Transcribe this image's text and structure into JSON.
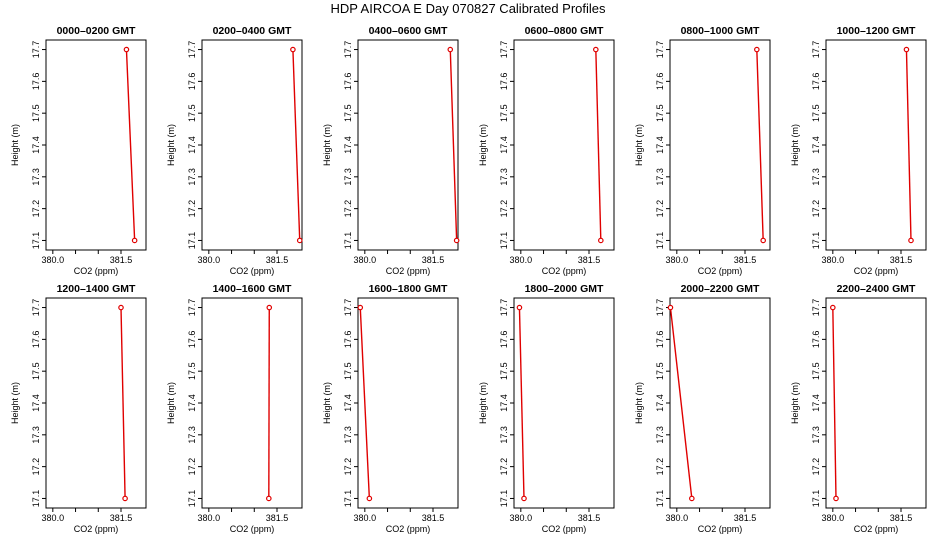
{
  "figure": {
    "title": "HDP  AIRCOA E  Day 070827  Calibrated Profiles"
  },
  "colors": {
    "series": "#e00000",
    "frame": "#000000"
  },
  "chart_data": [
    {
      "type": "line",
      "title": "0000–0200 GMT",
      "xlabel": "CO2 (ppm)",
      "ylabel": "Height (m)",
      "xlim": [
        379.85,
        382.05
      ],
      "ylim": [
        17.07,
        17.73
      ],
      "xticks": [
        "380.0",
        "381.5"
      ],
      "xtick_values": [
        380.0,
        380.5,
        381.0,
        381.5
      ],
      "yticks": [
        "17.1",
        "17.2",
        "17.3",
        "17.4",
        "17.5",
        "17.6",
        "17.7"
      ],
      "ytick_values": [
        17.1,
        17.2,
        17.3,
        17.4,
        17.5,
        17.6,
        17.7
      ],
      "points": [
        {
          "x": 381.62,
          "y": 17.7
        },
        {
          "x": 381.8,
          "y": 17.1
        }
      ]
    },
    {
      "type": "line",
      "title": "0200–0400 GMT",
      "xlabel": "CO2 (ppm)",
      "ylabel": "Height (m)",
      "xlim": [
        379.85,
        382.05
      ],
      "ylim": [
        17.07,
        17.73
      ],
      "xticks": [
        "380.0",
        "381.5"
      ],
      "xtick_values": [
        380.0,
        380.5,
        381.0,
        381.5
      ],
      "yticks": [
        "17.1",
        "17.2",
        "17.3",
        "17.4",
        "17.5",
        "17.6",
        "17.7"
      ],
      "ytick_values": [
        17.1,
        17.2,
        17.3,
        17.4,
        17.5,
        17.6,
        17.7
      ],
      "points": [
        {
          "x": 381.85,
          "y": 17.7
        },
        {
          "x": 382.0,
          "y": 17.1
        }
      ]
    },
    {
      "type": "line",
      "title": "0400–0600 GMT",
      "xlabel": "CO2 (ppm)",
      "ylabel": "Height (m)",
      "xlim": [
        379.85,
        382.05
      ],
      "ylim": [
        17.07,
        17.73
      ],
      "xticks": [
        "380.0",
        "381.5"
      ],
      "xtick_values": [
        380.0,
        380.5,
        381.0,
        381.5
      ],
      "yticks": [
        "17.1",
        "17.2",
        "17.3",
        "17.4",
        "17.5",
        "17.6",
        "17.7"
      ],
      "ytick_values": [
        17.1,
        17.2,
        17.3,
        17.4,
        17.5,
        17.6,
        17.7
      ],
      "points": [
        {
          "x": 381.88,
          "y": 17.7
        },
        {
          "x": 382.02,
          "y": 17.1
        }
      ]
    },
    {
      "type": "line",
      "title": "0600–0800 GMT",
      "xlabel": "CO2 (ppm)",
      "ylabel": "Height (m)",
      "xlim": [
        379.85,
        382.05
      ],
      "ylim": [
        17.07,
        17.73
      ],
      "xticks": [
        "380.0",
        "381.5"
      ],
      "xtick_values": [
        380.0,
        380.5,
        381.0,
        381.5
      ],
      "yticks": [
        "17.1",
        "17.2",
        "17.3",
        "17.4",
        "17.5",
        "17.6",
        "17.7"
      ],
      "ytick_values": [
        17.1,
        17.2,
        17.3,
        17.4,
        17.5,
        17.6,
        17.7
      ],
      "points": [
        {
          "x": 381.65,
          "y": 17.7
        },
        {
          "x": 381.76,
          "y": 17.1
        }
      ]
    },
    {
      "type": "line",
      "title": "0800–1000 GMT",
      "xlabel": "CO2 (ppm)",
      "ylabel": "Height (m)",
      "xlim": [
        379.85,
        382.05
      ],
      "ylim": [
        17.07,
        17.73
      ],
      "xticks": [
        "380.0",
        "381.5"
      ],
      "xtick_values": [
        380.0,
        380.5,
        381.0,
        381.5
      ],
      "yticks": [
        "17.1",
        "17.2",
        "17.3",
        "17.4",
        "17.5",
        "17.6",
        "17.7"
      ],
      "ytick_values": [
        17.1,
        17.2,
        17.3,
        17.4,
        17.5,
        17.6,
        17.7
      ],
      "points": [
        {
          "x": 381.76,
          "y": 17.7
        },
        {
          "x": 381.9,
          "y": 17.1
        }
      ]
    },
    {
      "type": "line",
      "title": "1000–1200 GMT",
      "xlabel": "CO2 (ppm)",
      "ylabel": "Height (m)",
      "xlim": [
        379.85,
        382.05
      ],
      "ylim": [
        17.07,
        17.73
      ],
      "xticks": [
        "380.0",
        "381.5"
      ],
      "xtick_values": [
        380.0,
        380.5,
        381.0,
        381.5
      ],
      "yticks": [
        "17.1",
        "17.2",
        "17.3",
        "17.4",
        "17.5",
        "17.6",
        "17.7"
      ],
      "ytick_values": [
        17.1,
        17.2,
        17.3,
        17.4,
        17.5,
        17.6,
        17.7
      ],
      "points": [
        {
          "x": 381.62,
          "y": 17.7
        },
        {
          "x": 381.72,
          "y": 17.1
        }
      ]
    },
    {
      "type": "line",
      "title": "1200–1400 GMT",
      "xlabel": "CO2 (ppm)",
      "ylabel": "Height (m)",
      "xlim": [
        379.85,
        382.05
      ],
      "ylim": [
        17.07,
        17.73
      ],
      "xticks": [
        "380.0",
        "381.5"
      ],
      "xtick_values": [
        380.0,
        380.5,
        381.0,
        381.5
      ],
      "yticks": [
        "17.1",
        "17.2",
        "17.3",
        "17.4",
        "17.5",
        "17.6",
        "17.7"
      ],
      "ytick_values": [
        17.1,
        17.2,
        17.3,
        17.4,
        17.5,
        17.6,
        17.7
      ],
      "points": [
        {
          "x": 381.5,
          "y": 17.7
        },
        {
          "x": 381.59,
          "y": 17.1
        }
      ]
    },
    {
      "type": "line",
      "title": "1400–1600 GMT",
      "xlabel": "CO2 (ppm)",
      "ylabel": "Height (m)",
      "xlim": [
        379.85,
        382.05
      ],
      "ylim": [
        17.07,
        17.73
      ],
      "xticks": [
        "380.0",
        "381.5"
      ],
      "xtick_values": [
        380.0,
        380.5,
        381.0,
        381.5
      ],
      "yticks": [
        "17.1",
        "17.2",
        "17.3",
        "17.4",
        "17.5",
        "17.6",
        "17.7"
      ],
      "ytick_values": [
        17.1,
        17.2,
        17.3,
        17.4,
        17.5,
        17.6,
        17.7
      ],
      "points": [
        {
          "x": 381.33,
          "y": 17.7
        },
        {
          "x": 381.32,
          "y": 17.1
        }
      ]
    },
    {
      "type": "line",
      "title": "1600–1800 GMT",
      "xlabel": "CO2 (ppm)",
      "ylabel": "Height (m)",
      "xlim": [
        379.85,
        382.05
      ],
      "ylim": [
        17.07,
        17.73
      ],
      "xticks": [
        "380.0",
        "381.5"
      ],
      "xtick_values": [
        380.0,
        380.5,
        381.0,
        381.5
      ],
      "yticks": [
        "17.1",
        "17.2",
        "17.3",
        "17.4",
        "17.5",
        "17.6",
        "17.7"
      ],
      "ytick_values": [
        17.1,
        17.2,
        17.3,
        17.4,
        17.5,
        17.6,
        17.7
      ],
      "points": [
        {
          "x": 379.9,
          "y": 17.7
        },
        {
          "x": 380.1,
          "y": 17.1
        }
      ]
    },
    {
      "type": "line",
      "title": "1800–2000 GMT",
      "xlabel": "CO2 (ppm)",
      "ylabel": "Height (m)",
      "xlim": [
        379.85,
        382.05
      ],
      "ylim": [
        17.07,
        17.73
      ],
      "xticks": [
        "380.0",
        "381.5"
      ],
      "xtick_values": [
        380.0,
        380.5,
        381.0,
        381.5
      ],
      "yticks": [
        "17.1",
        "17.2",
        "17.3",
        "17.4",
        "17.5",
        "17.6",
        "17.7"
      ],
      "ytick_values": [
        17.1,
        17.2,
        17.3,
        17.4,
        17.5,
        17.6,
        17.7
      ],
      "points": [
        {
          "x": 379.97,
          "y": 17.7
        },
        {
          "x": 380.07,
          "y": 17.1
        }
      ]
    },
    {
      "type": "line",
      "title": "2000–2200 GMT",
      "xlabel": "CO2 (ppm)",
      "ylabel": "Height (m)",
      "xlim": [
        379.85,
        382.05
      ],
      "ylim": [
        17.07,
        17.73
      ],
      "xticks": [
        "380.0",
        "381.5"
      ],
      "xtick_values": [
        380.0,
        380.5,
        381.0,
        381.5
      ],
      "yticks": [
        "17.1",
        "17.2",
        "17.3",
        "17.4",
        "17.5",
        "17.6",
        "17.7"
      ],
      "ytick_values": [
        17.1,
        17.2,
        17.3,
        17.4,
        17.5,
        17.6,
        17.7
      ],
      "points": [
        {
          "x": 379.86,
          "y": 17.7
        },
        {
          "x": 380.33,
          "y": 17.1
        }
      ]
    },
    {
      "type": "line",
      "title": "2200–2400 GMT",
      "xlabel": "CO2 (ppm)",
      "ylabel": "Height (m)",
      "xlim": [
        379.85,
        382.05
      ],
      "ylim": [
        17.07,
        17.73
      ],
      "xticks": [
        "380.0",
        "381.5"
      ],
      "xtick_values": [
        380.0,
        380.5,
        381.0,
        381.5
      ],
      "yticks": [
        "17.1",
        "17.2",
        "17.3",
        "17.4",
        "17.5",
        "17.6",
        "17.7"
      ],
      "ytick_values": [
        17.1,
        17.2,
        17.3,
        17.4,
        17.5,
        17.6,
        17.7
      ],
      "points": [
        {
          "x": 380.0,
          "y": 17.7
        },
        {
          "x": 380.07,
          "y": 17.1
        }
      ]
    }
  ]
}
